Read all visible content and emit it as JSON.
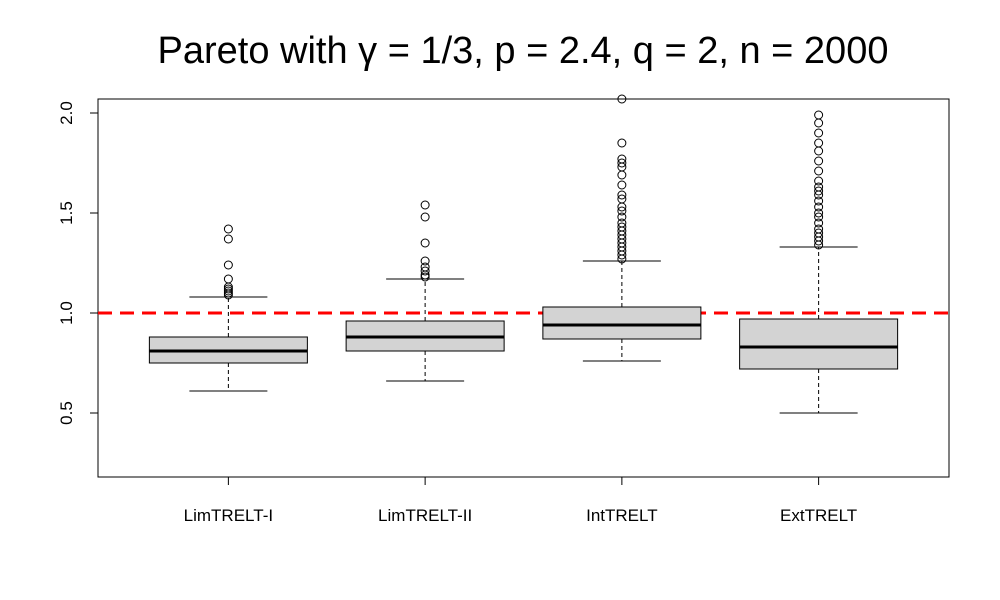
{
  "chart_data": {
    "type": "boxplot",
    "title": "Pareto with γ = 1/3, p = 2.4, q = 2, n = 2000",
    "categories": [
      "LimTRELT-I",
      "LimTRELT-II",
      "IntTRELT",
      "ExtTRELT"
    ],
    "ylim": [
      0.18,
      2.07
    ],
    "yticks": [
      0.5,
      1.0,
      1.5,
      2.0
    ],
    "ytick_labels": [
      "0.5",
      "1.0",
      "1.5",
      "2.0"
    ],
    "xlabel": "",
    "ylabel": "",
    "reference_line": {
      "y": 1.0,
      "color": "#ff0000",
      "style": "dashed"
    },
    "box_fill": "#d3d3d3",
    "boxes": [
      {
        "name": "LimTRELT-I",
        "whisker_low": 0.61,
        "q1": 0.75,
        "median": 0.81,
        "q3": 0.88,
        "whisker_high": 1.08,
        "outliers": [
          1.09,
          1.1,
          1.11,
          1.12,
          1.13,
          1.17,
          1.24,
          1.37,
          1.42
        ]
      },
      {
        "name": "LimTRELT-II",
        "whisker_low": 0.66,
        "q1": 0.81,
        "median": 0.88,
        "q3": 0.96,
        "whisker_high": 1.17,
        "outliers": [
          1.18,
          1.19,
          1.21,
          1.23,
          1.26,
          1.35,
          1.48,
          1.54
        ]
      },
      {
        "name": "IntTRELT",
        "whisker_low": 0.76,
        "q1": 0.87,
        "median": 0.94,
        "q3": 1.03,
        "whisker_high": 1.26,
        "outliers": [
          1.27,
          1.29,
          1.31,
          1.33,
          1.35,
          1.37,
          1.39,
          1.41,
          1.43,
          1.45,
          1.48,
          1.51,
          1.53,
          1.57,
          1.59,
          1.64,
          1.69,
          1.73,
          1.75,
          1.77,
          1.85,
          2.07
        ]
      },
      {
        "name": "ExtTRELT",
        "whisker_low": 0.5,
        "q1": 0.72,
        "median": 0.83,
        "q3": 0.97,
        "whisker_high": 1.33,
        "outliers": [
          1.34,
          1.36,
          1.38,
          1.4,
          1.42,
          1.45,
          1.48,
          1.5,
          1.53,
          1.56,
          1.59,
          1.61,
          1.63,
          1.66,
          1.71,
          1.76,
          1.81,
          1.85,
          1.9,
          1.95,
          1.99
        ]
      }
    ]
  }
}
